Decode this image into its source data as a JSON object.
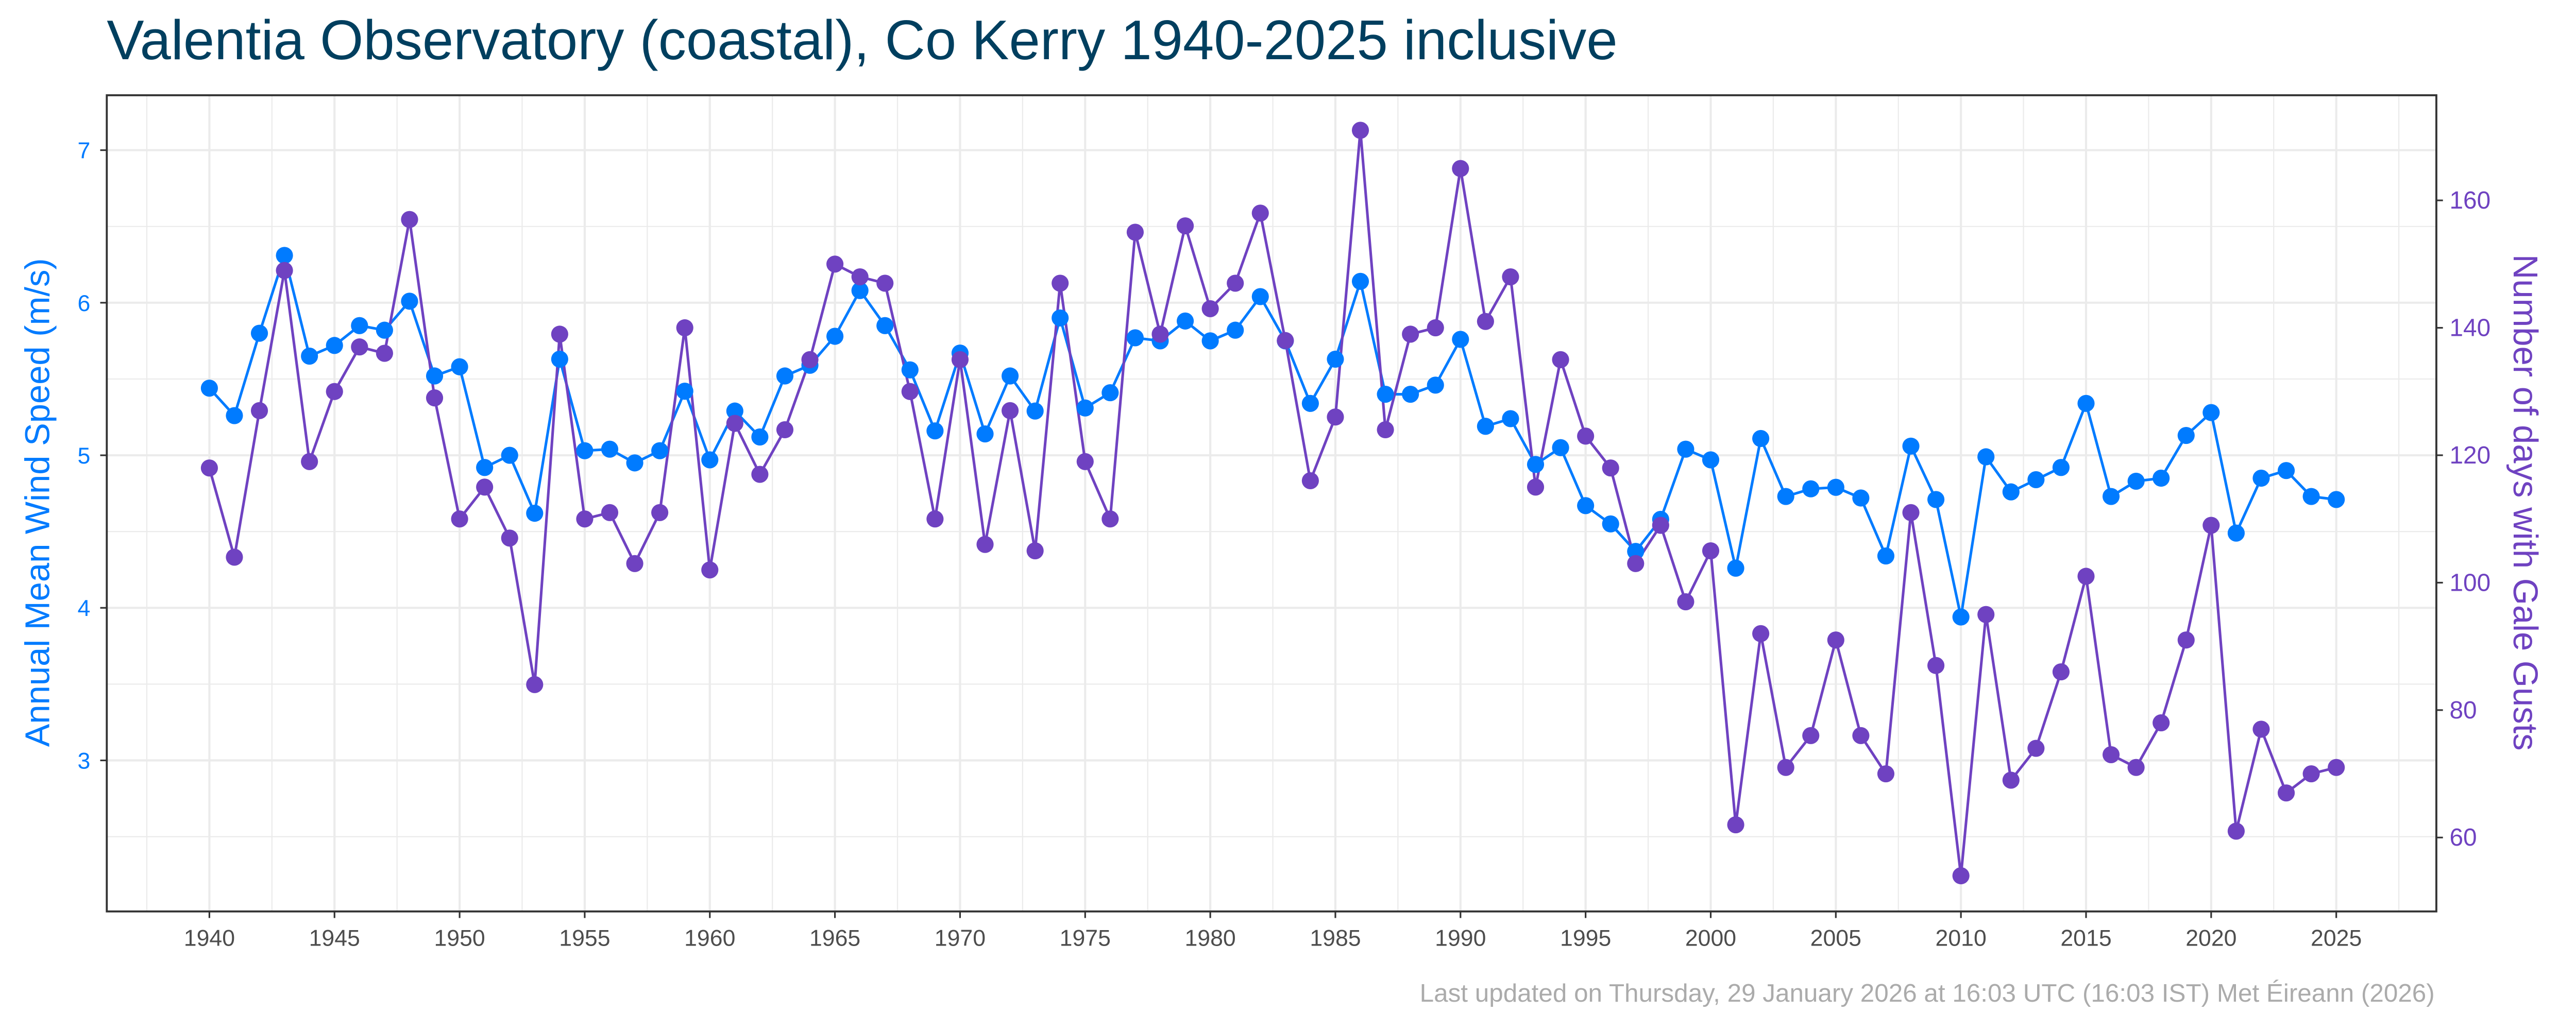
{
  "chart_data": {
    "type": "line",
    "title": "Valentia Observatory (coastal), Co Kerry 1940-2025 inclusive",
    "footer": "Last updated on Thursday, 29 January 2026 at 16:03 UTC (16:03 IST) Met Éireann (2026)",
    "xlabel": "",
    "ylabel_left": "Annual Mean Wind Speed (m/s)",
    "ylabel_right": "Number of days with Gale Gusts",
    "xlim": [
      1935.9,
      2029.0
    ],
    "ylim_left": [
      2.01,
      7.36
    ],
    "ylim_right": [
      48.4,
      176.5
    ],
    "x_ticks": [
      "1940",
      "1945",
      "1950",
      "1955",
      "1960",
      "1965",
      "1970",
      "1975",
      "1980",
      "1985",
      "1990",
      "1995",
      "2000",
      "2005",
      "2010",
      "2015",
      "2020",
      "2025"
    ],
    "y_ticks_left": [
      "3",
      "4",
      "5",
      "6",
      "7"
    ],
    "y_ticks_right": [
      "60",
      "80",
      "100",
      "120",
      "140",
      "160"
    ],
    "grid": true,
    "colors": {
      "wind": "#007bff",
      "gales": "#6f42c1",
      "title": "#003f5f",
      "footer": "#ababab"
    },
    "x": [
      1940,
      1941,
      1942,
      1943,
      1944,
      1945,
      1946,
      1947,
      1948,
      1949,
      1950,
      1951,
      1952,
      1953,
      1954,
      1955,
      1956,
      1957,
      1958,
      1959,
      1960,
      1961,
      1962,
      1963,
      1964,
      1965,
      1966,
      1967,
      1968,
      1969,
      1970,
      1971,
      1972,
      1973,
      1974,
      1975,
      1976,
      1977,
      1978,
      1979,
      1980,
      1981,
      1982,
      1983,
      1984,
      1985,
      1986,
      1987,
      1988,
      1989,
      1990,
      1991,
      1992,
      1993,
      1994,
      1995,
      1996,
      1997,
      1998,
      1999,
      2000,
      2001,
      2002,
      2003,
      2004,
      2005,
      2006,
      2007,
      2008,
      2009,
      2010,
      2011,
      2012,
      2013,
      2014,
      2015,
      2016,
      2017,
      2018,
      2019,
      2020,
      2021,
      2022,
      2023,
      2024,
      2025
    ],
    "series": [
      {
        "axis": "left",
        "values": [
          5.44,
          5.26,
          5.8,
          6.31,
          5.65,
          5.72,
          5.85,
          5.82,
          6.01,
          5.52,
          5.58,
          4.92,
          5.0,
          4.62,
          5.63,
          5.03,
          5.04,
          4.95,
          5.03,
          5.42,
          4.97,
          5.29,
          5.12,
          5.52,
          5.59,
          5.78,
          6.08,
          5.85,
          5.56,
          5.16,
          5.67,
          5.14,
          5.52,
          5.29,
          5.9,
          5.31,
          5.41,
          5.77,
          5.75,
          5.88,
          5.75,
          5.82,
          6.04,
          5.75,
          5.34,
          5.63,
          6.14,
          5.4,
          5.4,
          5.46,
          5.76,
          5.19,
          5.24,
          4.94,
          5.05,
          4.67,
          4.55,
          4.37,
          4.58,
          5.04,
          4.97,
          4.26,
          5.11,
          4.73,
          4.78,
          4.79,
          4.72,
          4.34,
          5.06,
          4.71,
          3.94,
          4.99,
          4.76,
          4.84,
          4.92,
          5.34,
          4.73,
          4.83,
          4.85,
          5.13,
          5.28,
          4.49,
          4.85,
          4.9,
          4.73,
          4.71
        ]
      },
      {
        "axis": "right",
        "values": [
          118,
          104,
          127,
          149,
          119,
          130,
          137,
          136,
          157,
          129,
          110,
          115,
          107,
          84,
          139,
          110,
          111,
          103,
          111,
          140,
          102,
          125,
          117,
          124,
          135,
          150,
          148,
          147,
          130,
          110,
          135,
          106,
          127,
          105,
          147,
          119,
          110,
          155,
          139,
          156,
          143,
          147,
          158,
          138,
          116,
          126,
          171,
          124,
          139,
          140,
          165,
          141,
          148,
          115,
          135,
          123,
          118,
          103,
          109,
          97,
          105,
          62,
          92,
          71,
          76,
          91,
          76,
          70,
          111,
          87,
          54,
          95,
          69,
          74,
          86,
          101,
          73,
          71,
          78,
          91,
          109,
          61,
          77,
          67,
          70,
          71
        ]
      }
    ]
  }
}
